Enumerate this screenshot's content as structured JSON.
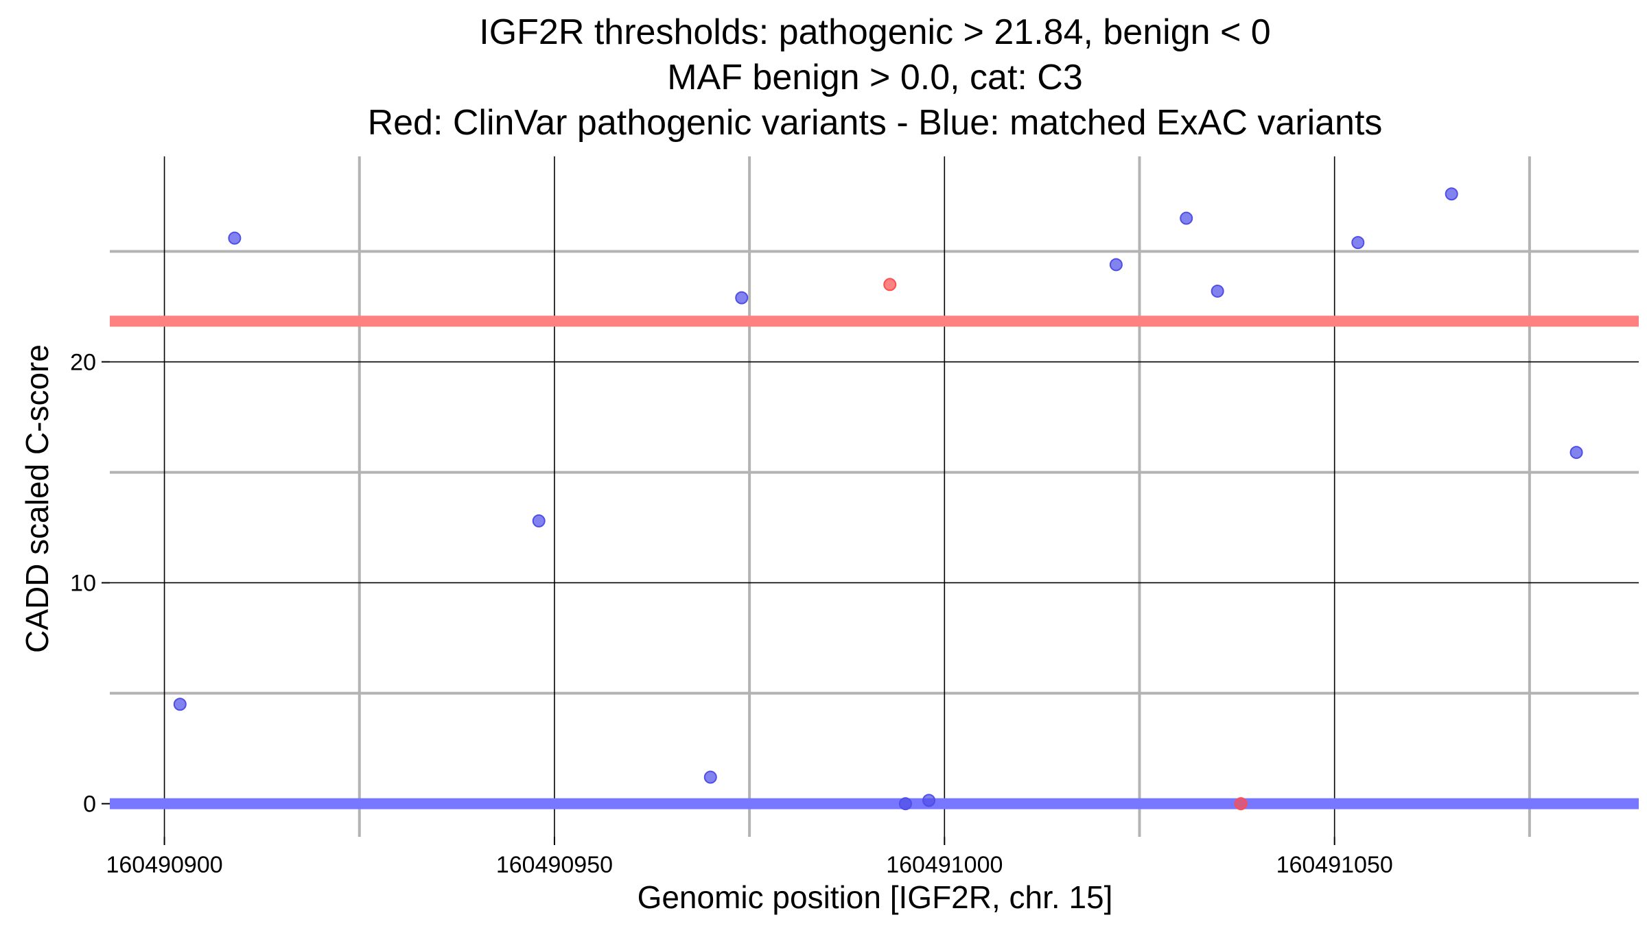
{
  "chart_data": {
    "type": "scatter",
    "title_lines": [
      "IGF2R thresholds: pathogenic > 21.84, benign < 0",
      "MAF benign > 0.0, cat: C3",
      "Red: ClinVar pathogenic variants - Blue: matched ExAC variants"
    ],
    "xlabel": "Genomic position [IGF2R, chr. 15]",
    "ylabel": "CADD scaled C-score",
    "xlim": [
      160490893,
      160491089
    ],
    "ylim": [
      -1.5,
      29.3
    ],
    "x_ticks": [
      160490900,
      160490950,
      160491000,
      160491050
    ],
    "x_tick_labels": [
      "160490900",
      "160490950",
      "160491000",
      "160491050"
    ],
    "x_minor_gridlines": [
      160490925,
      160490975,
      160491025,
      160491075
    ],
    "y_ticks": [
      0,
      10,
      20
    ],
    "y_tick_labels": [
      "0",
      "10",
      "20"
    ],
    "y_minor_gridlines": [
      5,
      15,
      25
    ],
    "grid": true,
    "thresholds": [
      {
        "value": 21.84,
        "color": "#ff8080"
      },
      {
        "value": 0,
        "color": "#7777ff"
      }
    ],
    "series": [
      {
        "color": "#4f4fe8",
        "points": [
          {
            "x": 160490902,
            "y": 4.5
          },
          {
            "x": 160490909,
            "y": 25.6
          },
          {
            "x": 160490948,
            "y": 12.8
          },
          {
            "x": 160490970,
            "y": 1.2
          },
          {
            "x": 160490974,
            "y": 22.9
          },
          {
            "x": 160490995,
            "y": 0.0
          },
          {
            "x": 160490998,
            "y": 0.15
          },
          {
            "x": 160491022,
            "y": 24.4
          },
          {
            "x": 160491031,
            "y": 26.5
          },
          {
            "x": 160491035,
            "y": 23.2
          },
          {
            "x": 160491053,
            "y": 25.4
          },
          {
            "x": 160491065,
            "y": 27.6
          },
          {
            "x": 160491081,
            "y": 15.9
          }
        ]
      },
      {
        "color": "#ff4d4d",
        "points": [
          {
            "x": 160490993,
            "y": 23.5
          },
          {
            "x": 160491038,
            "y": 0.0
          }
        ]
      }
    ]
  }
}
